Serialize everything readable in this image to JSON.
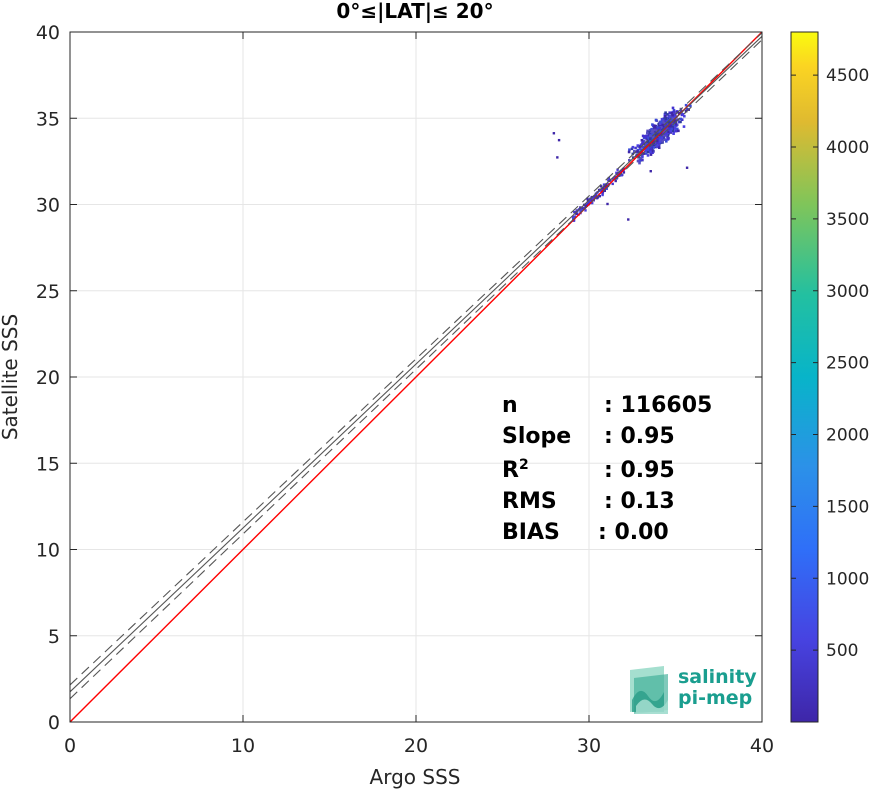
{
  "chart_data": {
    "type": "heatmap",
    "title": "0°≤|LAT|≤ 20°",
    "xlabel": "Argo SSS",
    "ylabel": "Satellite SSS",
    "xlim": [
      0,
      40
    ],
    "ylim": [
      0,
      40
    ],
    "xticks": [
      0,
      10,
      20,
      30,
      40
    ],
    "yticks": [
      0,
      5,
      10,
      15,
      20,
      25,
      30,
      35,
      40
    ],
    "grid": true,
    "colorbar": {
      "range": [
        0,
        4800
      ],
      "ticks": [
        500,
        1000,
        1500,
        2000,
        2500,
        3000,
        3500,
        4000,
        4500
      ],
      "colormap": "parula"
    },
    "lines": [
      {
        "kind": "identity",
        "color": "#ff0000",
        "style": "solid",
        "slope": 1.0,
        "intercept": 0.0
      },
      {
        "kind": "regression",
        "color": "#555555",
        "style": "solid",
        "slope": 0.95,
        "intercept": 1.75
      },
      {
        "kind": "regression-bound-upper",
        "color": "#555555",
        "style": "dashed",
        "slope": 0.945,
        "intercept": 2.15
      },
      {
        "kind": "regression-bound-lower",
        "color": "#555555",
        "style": "dashed",
        "slope": 0.955,
        "intercept": 1.35
      }
    ],
    "density_cluster": {
      "x_range": [
        27.7,
        35.8
      ],
      "y_range": [
        28.7,
        35.9
      ],
      "center": [
        34.0,
        34.2
      ]
    },
    "stats": [
      {
        "label": "n",
        "value": ": 116605"
      },
      {
        "label": "Slope",
        "value": ": 0.95"
      },
      {
        "label": "R",
        "sup": "2",
        "value": ": 0.95"
      },
      {
        "label": "RMS",
        "value": ": 0.13"
      },
      {
        "label": "BIAS",
        "value": ": 0.00"
      }
    ]
  },
  "logo": {
    "line1": "salinity",
    "line2": "pi-mep"
  }
}
